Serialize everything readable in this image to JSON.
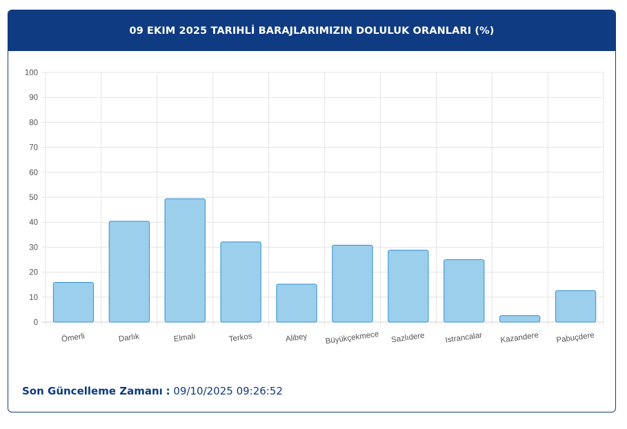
{
  "header": {
    "title": "09 EKIM 2025 TARIHLİ BARAJLARIMIZIN DOLULUK ORANLARI (%)"
  },
  "footer": {
    "label": "Son Güncelleme Zamanı",
    "separator": ":",
    "value": "09/10/2025 09:26:52"
  },
  "colors": {
    "header_bg": "#0f3b82",
    "bar_fill": "#9ccfec",
    "bar_stroke": "#2b8fcf"
  },
  "chart_data": {
    "type": "bar",
    "title": "09 EKIM 2025 TARIHLİ BARAJLARIMIZIN DOLULUK ORANLARI (%)",
    "categories": [
      "Ömerli",
      "Darlık",
      "Elmalı",
      "Terkos",
      "Alibey",
      "Büyükçekmece",
      "Sazlıdere",
      "Istrancalar",
      "Kazandere",
      "Pabuçdere"
    ],
    "values": [
      15.9,
      40.4,
      49.4,
      32.1,
      15.2,
      30.8,
      28.8,
      25.0,
      2.6,
      12.6
    ],
    "ylim": [
      0,
      100
    ],
    "yticks": [
      0,
      10,
      20,
      30,
      40,
      50,
      60,
      70,
      80,
      90,
      100
    ],
    "grid": true,
    "legend": "none"
  }
}
